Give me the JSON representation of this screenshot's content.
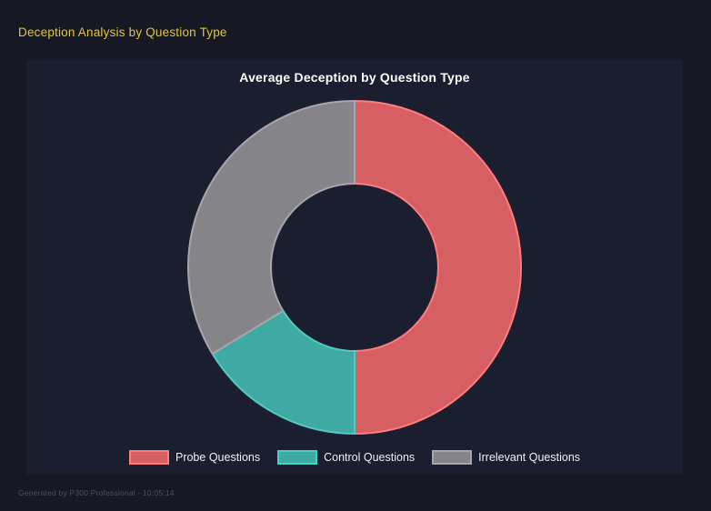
{
  "page": {
    "title": "Deception Analysis by Question Type",
    "footer": "Generated by P300 Professional - 10:05:14"
  },
  "colors": {
    "page_background": "#161924",
    "panel_background": "#1b1e2f",
    "page_title": "#e6c43c",
    "chart_title": "#ffffff",
    "legend_text": "#eef0f4",
    "footer_text": "#4d5267"
  },
  "chart_data": {
    "type": "pie",
    "subtype": "doughnut",
    "title": "Average Deception by Question Type",
    "legend_position": "bottom",
    "inner_radius_ratio": 0.5,
    "segments": [
      {
        "id": "probe",
        "label": "Probe Questions",
        "percent": 50.0,
        "fill": "#d65f63",
        "border": "#ff7d7d"
      },
      {
        "id": "control",
        "label": "Control Questions",
        "percent": 16.3,
        "fill": "#3faaa4",
        "border": "#4ecdc4"
      },
      {
        "id": "irrelevant",
        "label": "Irrelevant Questions",
        "percent": 33.7,
        "fill": "#848489",
        "border": "#a6a6ab"
      }
    ]
  }
}
